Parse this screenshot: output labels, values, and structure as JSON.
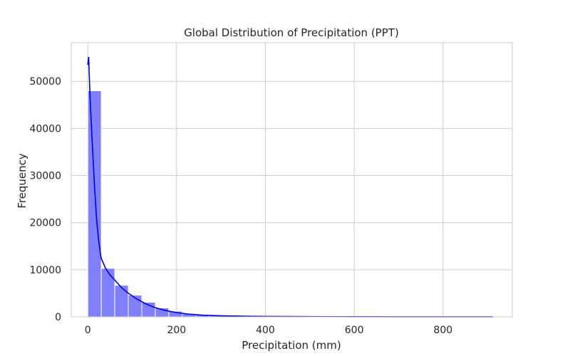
{
  "chart_data": {
    "type": "bar",
    "title": "Global Distribution of Precipitation (PPT)",
    "xlabel": "Precipitation (mm)",
    "ylabel": "Frequency",
    "xlim": [
      -37.2,
      956.0
    ],
    "ylim": [
      0,
      58200
    ],
    "xticks": [
      0,
      200,
      400,
      600,
      800
    ],
    "yticks": [
      0,
      10000,
      20000,
      30000,
      40000,
      50000
    ],
    "grid": true,
    "bin_width": 30.4,
    "bins": [
      {
        "x0": 0,
        "x1": 30.4,
        "count": 48000
      },
      {
        "x0": 30.4,
        "x1": 60.8,
        "count": 10300
      },
      {
        "x0": 60.8,
        "x1": 91.2,
        "count": 6700
      },
      {
        "x0": 91.2,
        "x1": 121.6,
        "count": 4600
      },
      {
        "x0": 121.6,
        "x1": 152.0,
        "count": 3100
      },
      {
        "x0": 152.0,
        "x1": 182.4,
        "count": 1900
      },
      {
        "x0": 182.4,
        "x1": 212.8,
        "count": 1200
      },
      {
        "x0": 212.8,
        "x1": 243.2,
        "count": 700
      },
      {
        "x0": 243.2,
        "x1": 273.6,
        "count": 450
      },
      {
        "x0": 273.6,
        "x1": 304.0,
        "count": 300
      },
      {
        "x0": 304.0,
        "x1": 334.4,
        "count": 200
      },
      {
        "x0": 334.4,
        "x1": 364.8,
        "count": 150
      },
      {
        "x0": 364.8,
        "x1": 395.2,
        "count": 110
      },
      {
        "x0": 395.2,
        "x1": 425.6,
        "count": 80
      },
      {
        "x0": 425.6,
        "x1": 456.0,
        "count": 60
      },
      {
        "x0": 456.0,
        "x1": 486.4,
        "count": 50
      },
      {
        "x0": 486.4,
        "x1": 516.8,
        "count": 40
      },
      {
        "x0": 516.8,
        "x1": 547.2,
        "count": 35
      },
      {
        "x0": 547.2,
        "x1": 577.6,
        "count": 30
      },
      {
        "x0": 577.6,
        "x1": 608.0,
        "count": 25
      },
      {
        "x0": 608.0,
        "x1": 638.4,
        "count": 20
      },
      {
        "x0": 638.4,
        "x1": 668.8,
        "count": 18
      },
      {
        "x0": 668.8,
        "x1": 699.2,
        "count": 15
      },
      {
        "x0": 699.2,
        "x1": 729.6,
        "count": 12
      },
      {
        "x0": 729.6,
        "x1": 760.0,
        "count": 10
      },
      {
        "x0": 760.0,
        "x1": 790.4,
        "count": 8
      },
      {
        "x0": 790.4,
        "x1": 820.8,
        "count": 6
      },
      {
        "x0": 820.8,
        "x1": 851.2,
        "count": 5
      },
      {
        "x0": 851.2,
        "x1": 881.6,
        "count": 4
      },
      {
        "x0": 881.6,
        "x1": 912.0,
        "count": 3
      }
    ],
    "kde": {
      "x": [
        0,
        2,
        5,
        10,
        15,
        20,
        25,
        30,
        40,
        50,
        60,
        75,
        90,
        110,
        130,
        150,
        175,
        200,
        230,
        260,
        300,
        350,
        400,
        450,
        500,
        550,
        600,
        650,
        700,
        750,
        800,
        850,
        900,
        912
      ],
      "y": [
        53500,
        55200,
        47000,
        37000,
        28000,
        20500,
        15800,
        12500,
        10300,
        8900,
        7900,
        6300,
        5100,
        3800,
        2800,
        2000,
        1350,
        900,
        550,
        350,
        220,
        140,
        95,
        70,
        50,
        38,
        28,
        22,
        16,
        12,
        9,
        6,
        4,
        3
      ]
    },
    "colors": {
      "bar_fill": "#8080ff",
      "bar_edge": "#ffffff",
      "kde_line": "#0000e0",
      "grid": "#cccccc",
      "axes": "#cccccc",
      "text": "#262626"
    }
  }
}
